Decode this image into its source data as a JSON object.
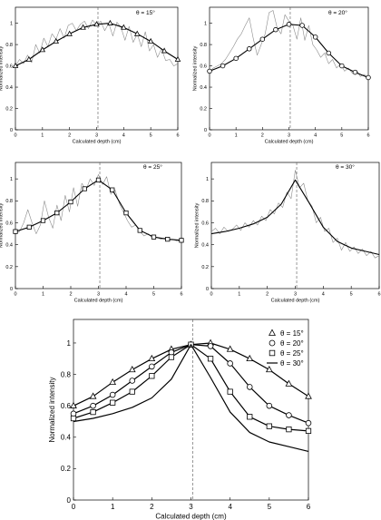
{
  "chart_data": [
    {
      "type": "line",
      "legend_text": "θ = 15°",
      "xlabel": "Calculated depth (cm)",
      "ylabel": "Normalized intensity",
      "xlim": [
        0,
        6
      ],
      "ylim": [
        0,
        1.15
      ],
      "xticks": [
        "0",
        "1",
        "2",
        "3",
        "4",
        "5",
        "6"
      ],
      "yticks": [
        "0",
        "0.2",
        "0.4",
        "0.6",
        "0.8",
        "1"
      ],
      "vline_x": 3.05,
      "series": [
        {
          "style": "noisy-gray",
          "x": [
            0,
            0.15,
            0.3,
            0.45,
            0.6,
            0.75,
            0.9,
            1.05,
            1.2,
            1.35,
            1.5,
            1.65,
            1.8,
            1.95,
            2.1,
            2.25,
            2.4,
            2.55,
            2.7,
            2.85,
            3.0,
            3.15,
            3.3,
            3.45,
            3.6,
            3.75,
            3.9,
            4.05,
            4.2,
            4.35,
            4.5,
            4.65,
            4.8,
            4.95,
            5.1,
            5.25,
            5.4,
            5.55,
            5.7,
            5.85,
            6.0
          ],
          "y": [
            0.6,
            0.66,
            0.62,
            0.7,
            0.63,
            0.8,
            0.72,
            0.86,
            0.78,
            0.9,
            0.85,
            0.95,
            0.86,
            0.98,
            1.0,
            0.93,
            0.99,
            1.02,
            0.95,
            1.03,
            0.98,
            1.02,
            0.93,
            1.0,
            0.88,
            1.01,
            0.96,
            0.84,
            0.97,
            0.82,
            0.9,
            0.78,
            0.92,
            0.74,
            0.8,
            0.68,
            0.76,
            0.65,
            0.66,
            0.6,
            0.62
          ]
        },
        {
          "style": "smooth-triangle",
          "x": [
            0,
            0.5,
            1.0,
            1.5,
            2.0,
            2.5,
            3.0,
            3.5,
            4.0,
            4.5,
            5.0,
            5.5,
            6.0
          ],
          "y": [
            0.6,
            0.66,
            0.75,
            0.83,
            0.9,
            0.96,
            0.99,
            1.0,
            0.96,
            0.9,
            0.83,
            0.74,
            0.66
          ]
        }
      ]
    },
    {
      "type": "line",
      "legend_text": "θ = 20°",
      "xlabel": "Calculated depth (cm)",
      "ylabel": "Normalized intensity",
      "xlim": [
        0,
        6
      ],
      "ylim": [
        0,
        1.15
      ],
      "xticks": [
        "0",
        "1",
        "2",
        "3",
        "4",
        "5",
        "6"
      ],
      "yticks": [
        "0",
        "0.2",
        "0.4",
        "0.6",
        "0.8",
        "1"
      ],
      "vline_x": 3.05,
      "series": [
        {
          "style": "noisy-gray",
          "x": [
            0,
            0.15,
            0.3,
            0.45,
            0.6,
            0.75,
            0.9,
            1.05,
            1.2,
            1.35,
            1.5,
            1.65,
            1.8,
            1.95,
            2.1,
            2.25,
            2.4,
            2.55,
            2.7,
            2.85,
            3.0,
            3.15,
            3.3,
            3.45,
            3.6,
            3.75,
            3.9,
            4.05,
            4.2,
            4.35,
            4.5,
            4.65,
            4.8,
            4.95,
            5.1,
            5.25,
            5.4,
            5.55,
            5.7,
            5.85,
            6.0
          ],
          "y": [
            0.55,
            0.58,
            0.6,
            0.62,
            0.66,
            0.72,
            0.78,
            0.85,
            0.9,
            0.98,
            1.05,
            0.86,
            0.7,
            0.8,
            0.9,
            1.1,
            1.12,
            0.96,
            0.9,
            1.08,
            1.02,
            0.98,
            0.85,
            1.05,
            0.84,
            0.98,
            0.8,
            0.75,
            0.68,
            0.72,
            0.62,
            0.66,
            0.58,
            0.62,
            0.55,
            0.58,
            0.53,
            0.56,
            0.5,
            0.52,
            0.48
          ]
        },
        {
          "style": "smooth-circle",
          "x": [
            0,
            0.5,
            1.0,
            1.5,
            2.0,
            2.5,
            3.0,
            3.5,
            4.0,
            4.5,
            5.0,
            5.5,
            6.0
          ],
          "y": [
            0.55,
            0.6,
            0.67,
            0.76,
            0.85,
            0.94,
            0.99,
            0.98,
            0.87,
            0.72,
            0.6,
            0.54,
            0.49
          ]
        }
      ]
    },
    {
      "type": "line",
      "legend_text": "θ = 25°",
      "xlabel": "Calculated depth (cm)",
      "ylabel": "Normalized intensity",
      "xlim": [
        0,
        6
      ],
      "ylim": [
        0,
        1.15
      ],
      "xticks": [
        "0",
        "1",
        "2",
        "3",
        "4",
        "5",
        "6"
      ],
      "yticks": [
        "0",
        "0.2",
        "0.4",
        "0.6",
        "0.8",
        "1"
      ],
      "vline_x": 3.05,
      "series": [
        {
          "style": "noisy-gray",
          "x": [
            0,
            0.15,
            0.3,
            0.45,
            0.6,
            0.75,
            0.9,
            1.05,
            1.2,
            1.35,
            1.5,
            1.65,
            1.8,
            1.95,
            2.1,
            2.25,
            2.4,
            2.55,
            2.7,
            2.85,
            3.0,
            3.15,
            3.3,
            3.45,
            3.6,
            3.75,
            3.9,
            4.05,
            4.2,
            4.35,
            4.5,
            4.65,
            4.8,
            4.95,
            5.1,
            5.25,
            5.4,
            5.55,
            5.7,
            5.85,
            6.0
          ],
          "y": [
            0.5,
            0.52,
            0.6,
            0.72,
            0.6,
            0.5,
            0.58,
            0.8,
            0.65,
            0.55,
            0.76,
            0.62,
            0.85,
            0.7,
            0.92,
            0.75,
            0.96,
            0.9,
            1.0,
            0.94,
            1.04,
            0.95,
            1.02,
            0.86,
            0.9,
            0.78,
            0.7,
            0.62,
            0.56,
            0.58,
            0.52,
            0.48,
            0.5,
            0.46,
            0.47,
            0.45,
            0.46,
            0.44,
            0.45,
            0.43,
            0.44
          ]
        },
        {
          "style": "smooth-square",
          "x": [
            0,
            0.5,
            1.0,
            1.5,
            2.0,
            2.5,
            3.0,
            3.5,
            4.0,
            4.5,
            5.0,
            5.5,
            6.0
          ],
          "y": [
            0.52,
            0.56,
            0.62,
            0.69,
            0.79,
            0.91,
            0.99,
            0.9,
            0.69,
            0.53,
            0.47,
            0.45,
            0.44
          ]
        }
      ]
    },
    {
      "type": "line",
      "legend_text": "θ = 30°",
      "xlabel": "Calculated depth (cm)",
      "ylabel": "Normalized intensity",
      "xlim": [
        0,
        6
      ],
      "ylim": [
        0,
        1.15
      ],
      "xticks": [
        "0",
        "1",
        "2",
        "3",
        "4",
        "5",
        "6"
      ],
      "yticks": [
        "0",
        "0.2",
        "0.4",
        "0.6",
        "0.8",
        "1"
      ],
      "vline_x": 3.05,
      "series": [
        {
          "style": "noisy-gray",
          "x": [
            0,
            0.15,
            0.3,
            0.45,
            0.6,
            0.75,
            0.9,
            1.05,
            1.2,
            1.35,
            1.5,
            1.65,
            1.8,
            1.95,
            2.1,
            2.25,
            2.4,
            2.55,
            2.7,
            2.85,
            3.0,
            3.15,
            3.3,
            3.45,
            3.6,
            3.75,
            3.9,
            4.05,
            4.2,
            4.35,
            4.5,
            4.65,
            4.8,
            4.95,
            5.1,
            5.25,
            5.4,
            5.55,
            5.7,
            5.85,
            6.0
          ],
          "y": [
            0.52,
            0.55,
            0.5,
            0.56,
            0.52,
            0.54,
            0.58,
            0.53,
            0.6,
            0.56,
            0.62,
            0.58,
            0.66,
            0.62,
            0.72,
            0.68,
            0.78,
            0.74,
            0.88,
            0.82,
            1.08,
            0.92,
            0.96,
            0.8,
            0.75,
            0.6,
            0.65,
            0.52,
            0.55,
            0.42,
            0.46,
            0.35,
            0.42,
            0.34,
            0.38,
            0.32,
            0.36,
            0.3,
            0.34,
            0.28,
            0.3
          ]
        },
        {
          "style": "smooth-line",
          "x": [
            0,
            0.5,
            1.0,
            1.5,
            2.0,
            2.5,
            3.0,
            3.5,
            4.0,
            4.5,
            5.0,
            5.5,
            6.0
          ],
          "y": [
            0.5,
            0.52,
            0.55,
            0.59,
            0.65,
            0.77,
            0.99,
            0.78,
            0.56,
            0.43,
            0.37,
            0.34,
            0.31
          ]
        }
      ]
    },
    {
      "type": "line",
      "xlabel": "Calculated depth (cm)",
      "ylabel": "Normalized intensity",
      "xlim": [
        0,
        6
      ],
      "ylim": [
        0,
        1.15
      ],
      "xticks": [
        "0",
        "1",
        "2",
        "3",
        "4",
        "5",
        "6"
      ],
      "yticks": [
        "0",
        "0.2",
        "0.4",
        "0.6",
        "0.8",
        "1"
      ],
      "vline_x": 3.05,
      "legend_position": "top-right",
      "series": [
        {
          "name": "θ = 15°",
          "marker": "triangle",
          "x": [
            0,
            0.5,
            1.0,
            1.5,
            2.0,
            2.5,
            3.0,
            3.5,
            4.0,
            4.5,
            5.0,
            5.5,
            6.0
          ],
          "y": [
            0.6,
            0.66,
            0.75,
            0.83,
            0.9,
            0.96,
            0.99,
            1.0,
            0.96,
            0.9,
            0.83,
            0.74,
            0.66
          ]
        },
        {
          "name": "θ = 20°",
          "marker": "circle",
          "x": [
            0,
            0.5,
            1.0,
            1.5,
            2.0,
            2.5,
            3.0,
            3.5,
            4.0,
            4.5,
            5.0,
            5.5,
            6.0
          ],
          "y": [
            0.55,
            0.6,
            0.67,
            0.76,
            0.85,
            0.94,
            0.99,
            0.98,
            0.87,
            0.72,
            0.6,
            0.54,
            0.49
          ]
        },
        {
          "name": "θ = 25°",
          "marker": "square",
          "x": [
            0,
            0.5,
            1.0,
            1.5,
            2.0,
            2.5,
            3.0,
            3.5,
            4.0,
            4.5,
            5.0,
            5.5,
            6.0
          ],
          "y": [
            0.52,
            0.56,
            0.62,
            0.69,
            0.79,
            0.91,
            0.99,
            0.9,
            0.69,
            0.53,
            0.47,
            0.45,
            0.44
          ]
        },
        {
          "name": "θ = 30°",
          "marker": "none",
          "x": [
            0,
            0.5,
            1.0,
            1.5,
            2.0,
            2.5,
            3.0,
            3.5,
            4.0,
            4.5,
            5.0,
            5.5,
            6.0
          ],
          "y": [
            0.5,
            0.52,
            0.55,
            0.59,
            0.65,
            0.77,
            0.99,
            0.78,
            0.56,
            0.43,
            0.37,
            0.34,
            0.31
          ]
        }
      ]
    }
  ]
}
